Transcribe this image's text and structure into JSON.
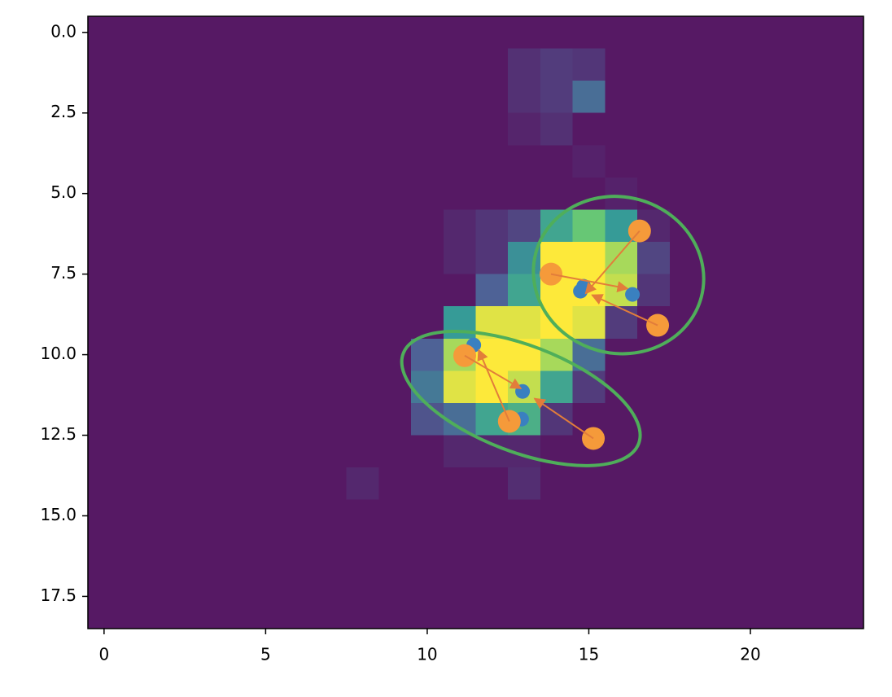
{
  "chart_data": {
    "type": "image",
    "cmap": "viridis",
    "alpha": 0.9,
    "vmin": 0,
    "vmax": 1,
    "xlim": [
      -0.5,
      23.5
    ],
    "ylim": [
      18.5,
      -0.5
    ],
    "xticks": [
      0,
      5,
      10,
      15,
      20
    ],
    "yticks": [
      {
        "value": 0,
        "label": "0.0"
      },
      {
        "value": 2.5,
        "label": "2.5"
      },
      {
        "value": 5,
        "label": "5.0"
      },
      {
        "value": 7.5,
        "label": "7.5"
      },
      {
        "value": 10,
        "label": "10.0"
      },
      {
        "value": 12.5,
        "label": "12.5"
      },
      {
        "value": 15,
        "label": "15.0"
      },
      {
        "value": 17.5,
        "label": "17.5"
      }
    ],
    "z": [
      [
        0,
        0,
        0,
        0,
        0,
        0,
        0,
        0,
        0,
        0,
        0,
        0,
        0,
        0,
        0,
        0,
        0,
        0,
        0,
        0,
        0,
        0,
        0,
        0
      ],
      [
        0,
        0,
        0,
        0,
        0,
        0,
        0,
        0,
        0,
        0,
        0,
        0,
        0,
        0.08,
        0.12,
        0.1,
        0,
        0,
        0,
        0,
        0,
        0,
        0,
        0
      ],
      [
        0,
        0,
        0,
        0,
        0,
        0,
        0,
        0,
        0,
        0,
        0,
        0,
        0,
        0.08,
        0.12,
        0.3,
        0,
        0,
        0,
        0,
        0,
        0,
        0,
        0
      ],
      [
        0,
        0,
        0,
        0,
        0,
        0,
        0,
        0,
        0,
        0,
        0,
        0,
        0,
        0.04,
        0.08,
        0,
        0,
        0,
        0,
        0,
        0,
        0,
        0,
        0
      ],
      [
        0,
        0,
        0,
        0,
        0,
        0,
        0,
        0,
        0,
        0,
        0,
        0,
        0,
        0,
        0,
        0.03,
        0,
        0,
        0,
        0,
        0,
        0,
        0,
        0
      ],
      [
        0,
        0,
        0,
        0,
        0,
        0,
        0,
        0,
        0,
        0,
        0,
        0,
        0,
        0,
        0,
        0,
        0.03,
        0,
        0,
        0,
        0,
        0,
        0,
        0
      ],
      [
        0,
        0,
        0,
        0,
        0,
        0,
        0,
        0,
        0,
        0,
        0,
        0.05,
        0.1,
        0.15,
        0.55,
        0.72,
        0.5,
        0.05,
        0,
        0,
        0,
        0,
        0,
        0
      ],
      [
        0,
        0,
        0,
        0,
        0,
        0,
        0,
        0,
        0,
        0,
        0,
        0.05,
        0.1,
        0.45,
        1,
        1,
        0.85,
        0.15,
        0,
        0,
        0,
        0,
        0,
        0
      ],
      [
        0,
        0,
        0,
        0,
        0,
        0,
        0,
        0,
        0,
        0,
        0,
        0,
        0.25,
        0.55,
        1,
        1,
        0.9,
        0.1,
        0,
        0,
        0,
        0,
        0,
        0
      ],
      [
        0,
        0,
        0,
        0,
        0,
        0,
        0,
        0,
        0,
        0,
        0,
        0.5,
        0.95,
        0.95,
        1,
        0.95,
        0.12,
        0,
        0,
        0,
        0,
        0,
        0,
        0
      ],
      [
        0,
        0,
        0,
        0,
        0,
        0,
        0,
        0,
        0,
        0,
        0.25,
        0.85,
        1,
        1,
        0.85,
        0.3,
        0,
        0,
        0,
        0,
        0,
        0,
        0,
        0
      ],
      [
        0,
        0,
        0,
        0,
        0,
        0,
        0,
        0,
        0,
        0,
        0.35,
        0.95,
        1,
        0.9,
        0.55,
        0.12,
        0,
        0,
        0,
        0,
        0,
        0,
        0,
        0
      ],
      [
        0,
        0,
        0,
        0,
        0,
        0,
        0,
        0,
        0,
        0,
        0.2,
        0.3,
        0.55,
        0.6,
        0.1,
        0,
        0,
        0,
        0,
        0,
        0,
        0,
        0,
        0
      ],
      [
        0,
        0,
        0,
        0,
        0,
        0,
        0,
        0,
        0,
        0,
        0,
        0.05,
        0.05,
        0.05,
        0,
        0,
        0,
        0,
        0,
        0,
        0,
        0,
        0,
        0
      ],
      [
        0,
        0,
        0,
        0,
        0,
        0,
        0,
        0,
        0.05,
        0,
        0,
        0,
        0,
        0.07,
        0,
        0,
        0,
        0,
        0,
        0,
        0,
        0,
        0,
        0
      ],
      [
        0,
        0,
        0,
        0,
        0,
        0,
        0,
        0,
        0,
        0,
        0,
        0,
        0,
        0,
        0,
        0,
        0,
        0,
        0,
        0,
        0,
        0,
        0,
        0
      ],
      [
        0,
        0,
        0,
        0,
        0,
        0,
        0,
        0,
        0,
        0,
        0,
        0,
        0,
        0,
        0,
        0,
        0,
        0,
        0,
        0,
        0,
        0,
        0,
        0
      ],
      [
        0,
        0,
        0,
        0,
        0,
        0,
        0,
        0,
        0,
        0,
        0,
        0,
        0,
        0,
        0,
        0,
        0,
        0,
        0,
        0,
        0,
        0,
        0,
        0
      ],
      [
        0,
        0,
        0,
        0,
        0,
        0,
        0,
        0,
        0,
        0,
        0,
        0,
        0,
        0,
        0,
        0,
        0,
        0,
        0,
        0,
        0,
        0,
        0,
        0
      ]
    ],
    "points": [
      {
        "color": "#3a80c0",
        "x": [
          11.44,
          14.84,
          14.74,
          16.35,
          12.95,
          12.92
        ],
        "y": [
          9.7,
          7.88,
          8.03,
          8.13,
          11.14,
          12.0
        ]
      },
      {
        "color": "#f59a3a",
        "x": [
          16.57,
          13.83,
          17.13,
          11.16,
          12.54,
          15.14
        ],
        "y": [
          6.16,
          7.5,
          9.09,
          10.03,
          12.07,
          12.6
        ]
      }
    ],
    "arrows": {
      "color": "#e27d3a",
      "x0": [
        16.57,
        13.83,
        17.13,
        11.16,
        12.54,
        15.14
      ],
      "y0": [
        6.16,
        7.5,
        9.09,
        10.03,
        12.07,
        12.6
      ],
      "x1": [
        14.9,
        16.2,
        15.1,
        12.9,
        11.59,
        13.32
      ],
      "y1": [
        8.1,
        7.95,
        8.15,
        11.05,
        9.85,
        11.36
      ]
    },
    "ellipses": {
      "color": "#4fae5a",
      "x": [
        15.92,
        12.9
      ],
      "y": [
        7.53,
        11.36
      ],
      "width": [
        5.3,
        7.8
      ],
      "height": [
        4.85,
        3.3
      ],
      "angle": [
        15,
        21
      ]
    }
  }
}
